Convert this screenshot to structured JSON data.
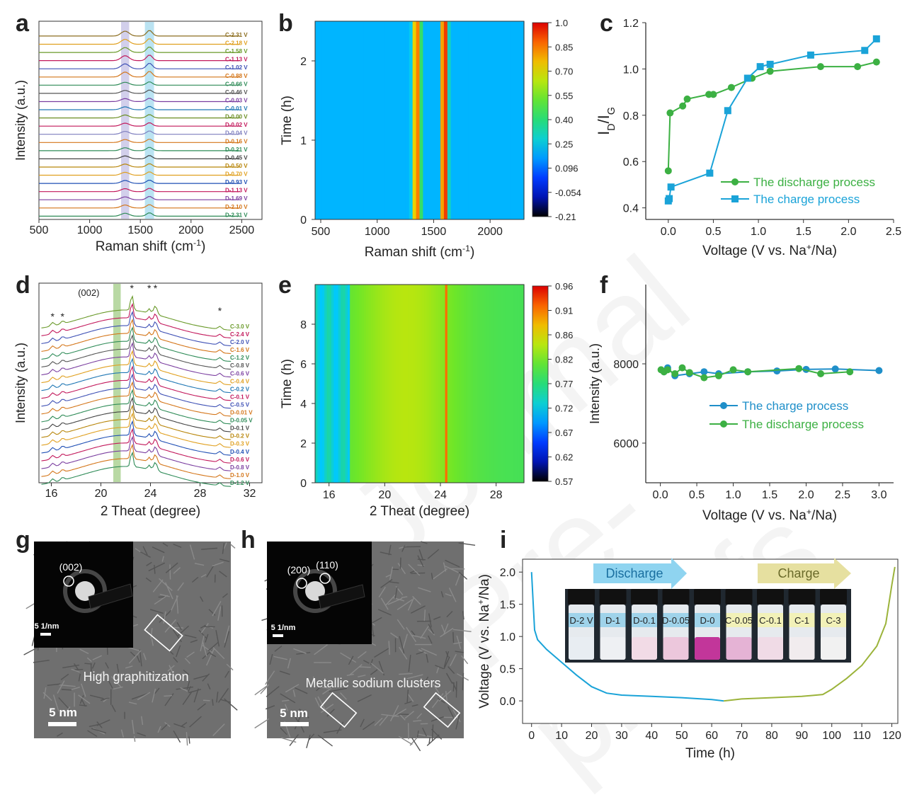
{
  "panels": [
    "a",
    "b",
    "c",
    "d",
    "e",
    "f",
    "g",
    "h",
    "i"
  ],
  "watermark": "Journal Pre-proofs",
  "chart_data": [
    {
      "id": "a",
      "type": "line",
      "title": "",
      "xlabel": "Raman shift (cm⁻¹)",
      "ylabel": "Intensity (a.u.)",
      "xlim": [
        500,
        2700
      ],
      "xticks": [
        500,
        1000,
        1500,
        2000,
        2500
      ],
      "bands": [
        {
          "center": 1350,
          "width": 80,
          "color": "#c7c3e6"
        },
        {
          "center": 1590,
          "width": 90,
          "color": "#a9dcef"
        }
      ],
      "peaks": {
        "D": 1350,
        "G": 1590
      },
      "series_labels": [
        "C-2.31 V",
        "C-2.18 V",
        "C-1.58 V",
        "C-1.13 V",
        "C-1.02 V",
        "C-0.88 V",
        "C-0.66 V",
        "C-0.46 V",
        "C-0.03 V",
        "C-0.01 V",
        "D-0.00 V",
        "D-0.02 V",
        "D-0.04 V",
        "D-0.16 V",
        "D-0.21 V",
        "D-0.45 V",
        "D-0.50 V",
        "D-0.70 V",
        "D-0.93 V",
        "D-1.13 V",
        "D-1.69 V",
        "D-2.10 V",
        "D-2.31 V"
      ],
      "series_colors": [
        "#8c6d1f",
        "#e0a020",
        "#6a9a2a",
        "#c2185b",
        "#3f51b5",
        "#d4761a",
        "#2e8b57",
        "#555555",
        "#7b3fa0",
        "#1f77b4",
        "#6b8e23",
        "#c2185b",
        "#7f7fbf",
        "#d4761a",
        "#2e8b57",
        "#444444",
        "#b8860b",
        "#e0a020",
        "#1f4fb4",
        "#c2185b",
        "#7b3fa0",
        "#d4761a",
        "#2e8b57"
      ]
    },
    {
      "id": "b",
      "type": "heatmap",
      "xlabel": "Raman shift (cm⁻¹)",
      "ylabel": "Time (h)",
      "xlim": [
        450,
        2300
      ],
      "ylim": [
        0,
        2.5
      ],
      "xticks": [
        500,
        1000,
        1500,
        2000
      ],
      "yticks": [
        0,
        1,
        2
      ],
      "bands": [
        {
          "center": 1350,
          "intensity": 0.9
        },
        {
          "center": 1595,
          "intensity": 1.0
        }
      ],
      "colorbar": {
        "ticks": [
          "1.0",
          "0.85",
          "0.70",
          "0.55",
          "0.40",
          "0.25",
          "0.096",
          "-0.054",
          "-0.21"
        ],
        "range": [
          -0.21,
          1.0
        ]
      }
    },
    {
      "id": "c",
      "type": "line",
      "xlabel": "Voltage (V vs. Na⁺/Na)",
      "ylabel": "ID/IG",
      "xlim": [
        -0.25,
        2.5
      ],
      "ylim": [
        0.35,
        1.2
      ],
      "xticks": [
        0.0,
        0.5,
        1.0,
        1.5,
        2.0,
        2.5
      ],
      "yticks": [
        0.4,
        0.6,
        0.8,
        1.0,
        1.2
      ],
      "series": [
        {
          "name": "The discharge process",
          "color": "#3cb043",
          "marker": "circle",
          "x": [
            0.0,
            0.02,
            0.16,
            0.21,
            0.45,
            0.5,
            0.7,
            0.93,
            1.13,
            1.69,
            2.1,
            2.31
          ],
          "y": [
            0.56,
            0.81,
            0.84,
            0.87,
            0.89,
            0.89,
            0.92,
            0.96,
            0.99,
            1.01,
            1.01,
            1.03
          ]
        },
        {
          "name": "The charge process",
          "color": "#1aa3d8",
          "marker": "square",
          "x": [
            0.0,
            0.01,
            0.03,
            0.46,
            0.66,
            0.88,
            1.02,
            1.13,
            1.58,
            2.18,
            2.31
          ],
          "y": [
            0.43,
            0.44,
            0.49,
            0.55,
            0.82,
            0.96,
            1.01,
            1.02,
            1.06,
            1.08,
            1.13
          ]
        }
      ]
    },
    {
      "id": "d",
      "type": "line",
      "xlabel": "2 Theat (degree)",
      "ylabel": "Intensity (a.u.)",
      "xlim": [
        15,
        33
      ],
      "xticks": [
        16,
        20,
        24,
        28,
        32
      ],
      "annotation": "(002)",
      "band": {
        "center": 21.3,
        "width": 0.6,
        "color": "#a8d08d"
      },
      "peaks": [
        16.1,
        16.9,
        22.5,
        23.9,
        24.4,
        29.6
      ],
      "series_labels": [
        "C-3.0 V",
        "C-2.4 V",
        "C-2.0 V",
        "C-1.6 V",
        "C-1.2 V",
        "C-0.8 V",
        "C-0.6 V",
        "C-0.4 V",
        "C-0.2 V",
        "C-0.1 V",
        "C-0.5 V",
        "D-0.01 V",
        "D-0.05 V",
        "D-0.1 V",
        "D-0.2 V",
        "D-0.3 V",
        "D-0.4 V",
        "D-0.6 V",
        "D-0.8 V",
        "D-1.0 V",
        "D-1.2 V"
      ],
      "series_colors": [
        "#6a9a2a",
        "#c2185b",
        "#3f51b5",
        "#d4761a",
        "#2e8b57",
        "#555555",
        "#7b3fa0",
        "#e0a020",
        "#1f77b4",
        "#c2185b",
        "#3f51b5",
        "#d4761a",
        "#2e8b57",
        "#444444",
        "#b8860b",
        "#e0a020",
        "#1f4fb4",
        "#c2185b",
        "#7b3fa0",
        "#d4761a",
        "#2e8b57"
      ]
    },
    {
      "id": "e",
      "type": "heatmap",
      "xlabel": "2 Theat (degree)",
      "ylabel": "Time (h)",
      "xlim": [
        15,
        30
      ],
      "ylim": [
        0,
        10
      ],
      "xticks": [
        16,
        20,
        24,
        28
      ],
      "yticks": [
        0,
        2,
        4,
        6,
        8
      ],
      "colorbar": {
        "ticks": [
          "0.96",
          "0.91",
          "0.86",
          "0.82",
          "0.77",
          "0.72",
          "0.67",
          "0.62",
          "0.57"
        ],
        "range": [
          0.57,
          0.96
        ]
      }
    },
    {
      "id": "f",
      "type": "line",
      "xlabel": "Voltage (V vs. Na⁺/Na)",
      "ylabel": "Intensity (a.u.)",
      "xlim": [
        -0.2,
        3.2
      ],
      "ylim": [
        5000,
        10000
      ],
      "xticks": [
        0.0,
        0.5,
        1.0,
        1.5,
        2.0,
        2.5,
        3.0
      ],
      "yticks": [
        6000,
        8000
      ],
      "series": [
        {
          "name": "The charge process",
          "color": "#1f8fc9",
          "marker": "circle",
          "x": [
            0.05,
            0.1,
            0.2,
            0.4,
            0.6,
            0.8,
            1.2,
            1.6,
            2.0,
            2.4,
            3.0
          ],
          "y": [
            7800,
            7900,
            7700,
            7750,
            7800,
            7750,
            7800,
            7820,
            7860,
            7870,
            7830
          ]
        },
        {
          "name": "The discharge process",
          "color": "#3cb043",
          "marker": "circle",
          "x": [
            0.01,
            0.05,
            0.1,
            0.2,
            0.3,
            0.4,
            0.6,
            0.8,
            1.0,
            1.2,
            1.9,
            2.2,
            2.6
          ],
          "y": [
            7850,
            7800,
            7850,
            7750,
            7900,
            7780,
            7650,
            7700,
            7850,
            7800,
            7880,
            7750,
            7800
          ]
        }
      ]
    },
    {
      "id": "i",
      "type": "line",
      "xlabel": "Time (h)",
      "ylabel": "Voltage (V vs. Na⁺/Na)",
      "xlim": [
        -3,
        122
      ],
      "ylim": [
        -0.35,
        2.2
      ],
      "xticks": [
        0,
        10,
        20,
        30,
        40,
        50,
        60,
        70,
        80,
        90,
        100,
        110,
        120
      ],
      "yticks": [
        0.0,
        0.5,
        1.0,
        1.5,
        2.0
      ],
      "series": [
        {
          "name": "discharge",
          "color": "#1aa3d8",
          "x": [
            0,
            1,
            2,
            5,
            10,
            15,
            20,
            25,
            30,
            40,
            50,
            60,
            64
          ],
          "y": [
            2.0,
            1.1,
            0.95,
            0.8,
            0.6,
            0.4,
            0.22,
            0.12,
            0.09,
            0.07,
            0.05,
            0.02,
            0.0
          ]
        },
        {
          "name": "charge",
          "color": "#9bb33a",
          "x": [
            64,
            70,
            80,
            90,
            97,
            100,
            105,
            110,
            115,
            118,
            120,
            121
          ],
          "y": [
            0.0,
            0.03,
            0.05,
            0.07,
            0.1,
            0.18,
            0.35,
            0.55,
            0.85,
            1.2,
            1.8,
            2.08
          ]
        }
      ],
      "arrows": [
        "Discharge",
        "Charge"
      ],
      "vials": [
        "D-2 V",
        "D-1",
        "D-0.1",
        "D-0.05",
        "D-0",
        "C-0.05",
        "C-0.1",
        "C-1",
        "C-3"
      ],
      "vial_colors": [
        "#e8edf2",
        "#eef0f3",
        "#f2dbe6",
        "#ecc7dc",
        "#c2369a",
        "#e5b3d5",
        "#f0dbe6",
        "#f1ecee",
        "#f1f1f1"
      ]
    }
  ],
  "tem": {
    "g": {
      "inset_label": "(002)",
      "scale_inset": "5 1/nm",
      "scale": "5 nm",
      "caption": "High graphitization"
    },
    "h": {
      "inset_labels": [
        "(200)",
        "(110)"
      ],
      "scale_inset": "5 1/nm",
      "scale": "5 nm",
      "caption": "Metallic sodium clusters"
    }
  }
}
